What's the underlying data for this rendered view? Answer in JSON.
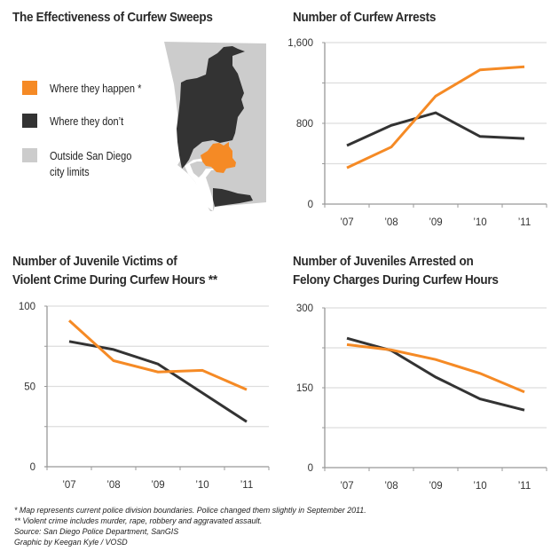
{
  "main_title": "The Effectiveness of Curfew Sweeps",
  "colors": {
    "orange": "#f58a25",
    "dark": "#333333",
    "light": "#cccccc",
    "grid": "#dddddd",
    "axis": "#999999"
  },
  "legend": [
    {
      "label": "Where they happen *",
      "color": "#f58a25"
    },
    {
      "label": "Where they don’t",
      "color": "#333333"
    },
    {
      "label": "Outside San Diego\ncity limits",
      "label_lines": [
        "Outside San Diego",
        "city limits"
      ],
      "color": "#cccccc"
    }
  ],
  "map": {
    "regions": [
      "Outside San Diego city limits",
      "Where they don’t",
      "Where they happen"
    ]
  },
  "chart_data": [
    {
      "type": "line",
      "title": "Number of Curfew Arrests",
      "title_lines": [
        "Number of Curfew Arrests"
      ],
      "categories": [
        "’07",
        "’08",
        "’09",
        "’10",
        "’11"
      ],
      "ylim": [
        0,
        1600
      ],
      "yticks": [
        0,
        400,
        800,
        1200,
        1600
      ],
      "ytick_labels": [
        "0",
        "",
        "800",
        "",
        "1,600"
      ],
      "grid": true,
      "series": [
        {
          "name": "Where they happen",
          "color": "#f58a25",
          "values": [
            360,
            565,
            1070,
            1330,
            1360
          ]
        },
        {
          "name": "Where they don’t",
          "color": "#333333",
          "values": [
            580,
            780,
            905,
            670,
            650
          ]
        }
      ]
    },
    {
      "type": "line",
      "title": "Number of Juvenile Victims of Violent Crime During Curfew Hours **",
      "title_lines": [
        "Number of Juvenile Victims of",
        "Violent Crime During Curfew Hours **"
      ],
      "categories": [
        "’07",
        "’08",
        "’09",
        "’10",
        "’11"
      ],
      "ylim": [
        0,
        100
      ],
      "yticks": [
        0,
        25,
        50,
        75,
        100
      ],
      "ytick_labels": [
        "0",
        "",
        "50",
        "",
        "100"
      ],
      "grid": true,
      "series": [
        {
          "name": "Where they happen",
          "color": "#f58a25",
          "values": [
            91,
            66,
            59,
            60,
            48
          ]
        },
        {
          "name": "Where they don’t",
          "color": "#333333",
          "values": [
            78,
            73,
            64,
            46,
            28
          ]
        }
      ]
    },
    {
      "type": "line",
      "title": "Number of Juveniles Arrested on Felony Charges During Curfew Hours",
      "title_lines": [
        "Number of Juveniles Arrested on",
        "Felony Charges During Curfew Hours"
      ],
      "categories": [
        "’07",
        "’08",
        "’09",
        "’10",
        "’11"
      ],
      "ylim": [
        0,
        300
      ],
      "yticks": [
        0,
        75,
        150,
        225,
        300
      ],
      "ytick_labels": [
        "0",
        "",
        "150",
        "",
        "300"
      ],
      "grid": true,
      "series": [
        {
          "name": "Where they happen",
          "color": "#f58a25",
          "values": [
            231,
            221,
            203,
            177,
            142
          ]
        },
        {
          "name": "Where they don’t",
          "color": "#333333",
          "values": [
            243,
            220,
            170,
            129,
            108
          ]
        }
      ]
    }
  ],
  "notes": [
    "* Map represents current police division boundaries. Police changed them slightly in September 2011.",
    "** Violent crime includes murder, rape, robbery and aggravated assault.",
    "Source: San Diego Police Department, SanGIS",
    "Graphic by Keegan Kyle / VOSD"
  ]
}
